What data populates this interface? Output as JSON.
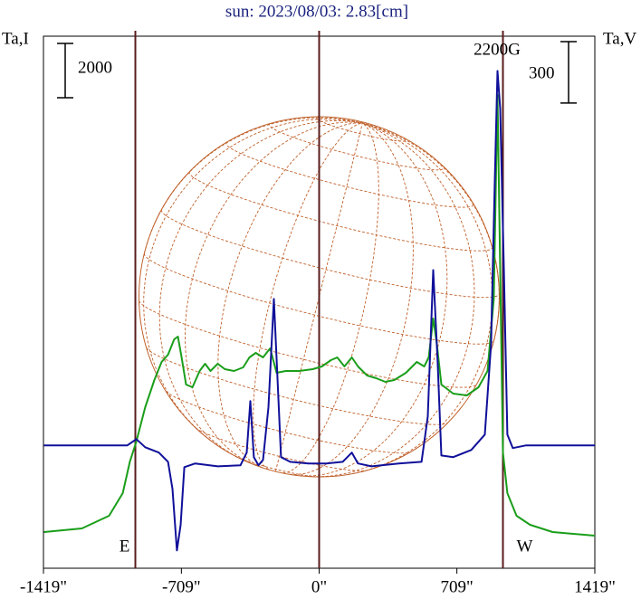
{
  "chart_data": {
    "type": "line",
    "title": "sun: 2023/08/03: 2.83[cm]",
    "y_label": "Ta,I",
    "y2_label": "Ta,V",
    "i_scale": 2000,
    "v_scale": 300,
    "annotation": "2200G",
    "east_label": "E",
    "west_label": "W",
    "xlim": [
      -1419,
      1419
    ],
    "xticks": [
      {
        "value": -1419,
        "label": "-1419\""
      },
      {
        "value": -709,
        "label": "-709\""
      },
      {
        "value": 0,
        "label": "0\""
      },
      {
        "value": 709,
        "label": "709\""
      },
      {
        "value": 1419,
        "label": "1419\""
      }
    ],
    "vlines": [
      -946,
      0,
      946
    ],
    "ylim": [
      0,
      19600
    ],
    "y2lim": [
      -600,
      2000
    ],
    "series": [
      {
        "color": "#1a9e1a",
        "axis": "y",
        "x": [
          -1416,
          -1221,
          -1081,
          -1011,
          -974,
          -941,
          -895,
          -848,
          -811,
          -778,
          -746,
          -727,
          -708,
          -685,
          -652,
          -615,
          -587,
          -559,
          -522,
          -485,
          -438,
          -391,
          -359,
          -326,
          -289,
          -252,
          -219,
          -172,
          -103,
          -33,
          14,
          61,
          93,
          130,
          168,
          200,
          247,
          294,
          340,
          387,
          447,
          503,
          541,
          564,
          587,
          606,
          629,
          690,
          760,
          820,
          867,
          899,
          918,
          932,
          946,
          969,
          1016,
          1086,
          1202,
          1419
        ],
        "values": [
          1333,
          1467,
          1933,
          2767,
          3933,
          4667,
          5933,
          6933,
          7600,
          7867,
          8433,
          8533,
          7767,
          6767,
          6667,
          7267,
          7533,
          7267,
          7533,
          7333,
          7267,
          7400,
          7767,
          7933,
          7767,
          8100,
          7200,
          7267,
          7267,
          7333,
          7433,
          7667,
          7767,
          7433,
          7767,
          7433,
          7100,
          7000,
          6867,
          6933,
          7200,
          7600,
          7433,
          7767,
          9200,
          8267,
          6767,
          6433,
          6367,
          6667,
          7267,
          9933,
          17433,
          10933,
          4267,
          2767,
          1933,
          1600,
          1333,
          1200
        ]
      },
      {
        "color": "#10109a",
        "axis": "y2",
        "x": [
          -1416,
          -1174,
          -988,
          -941,
          -895,
          -825,
          -778,
          -755,
          -732,
          -713,
          -694,
          -638,
          -522,
          -405,
          -373,
          -354,
          -336,
          -312,
          -289,
          -261,
          -233,
          -214,
          -196,
          -149,
          -56,
          37,
          121,
          168,
          200,
          270,
          410,
          527,
          559,
          587,
          610,
          629,
          690,
          783,
          853,
          885,
          904,
          918,
          932,
          951,
          969,
          997,
          1063,
          1419
        ],
        "values": [
          0,
          0,
          0,
          31,
          -9,
          -35,
          -80,
          -212,
          -513,
          -389,
          -106,
          -88,
          -102,
          -97,
          -35,
          217,
          -57,
          -97,
          -71,
          186,
          716,
          318,
          -57,
          -80,
          -88,
          -88,
          -80,
          -35,
          -88,
          -102,
          -88,
          -80,
          141,
          857,
          407,
          -49,
          -57,
          -22,
          53,
          495,
          1291,
          1830,
          1644,
          849,
          53,
          -13,
          0,
          0
        ]
      }
    ]
  }
}
